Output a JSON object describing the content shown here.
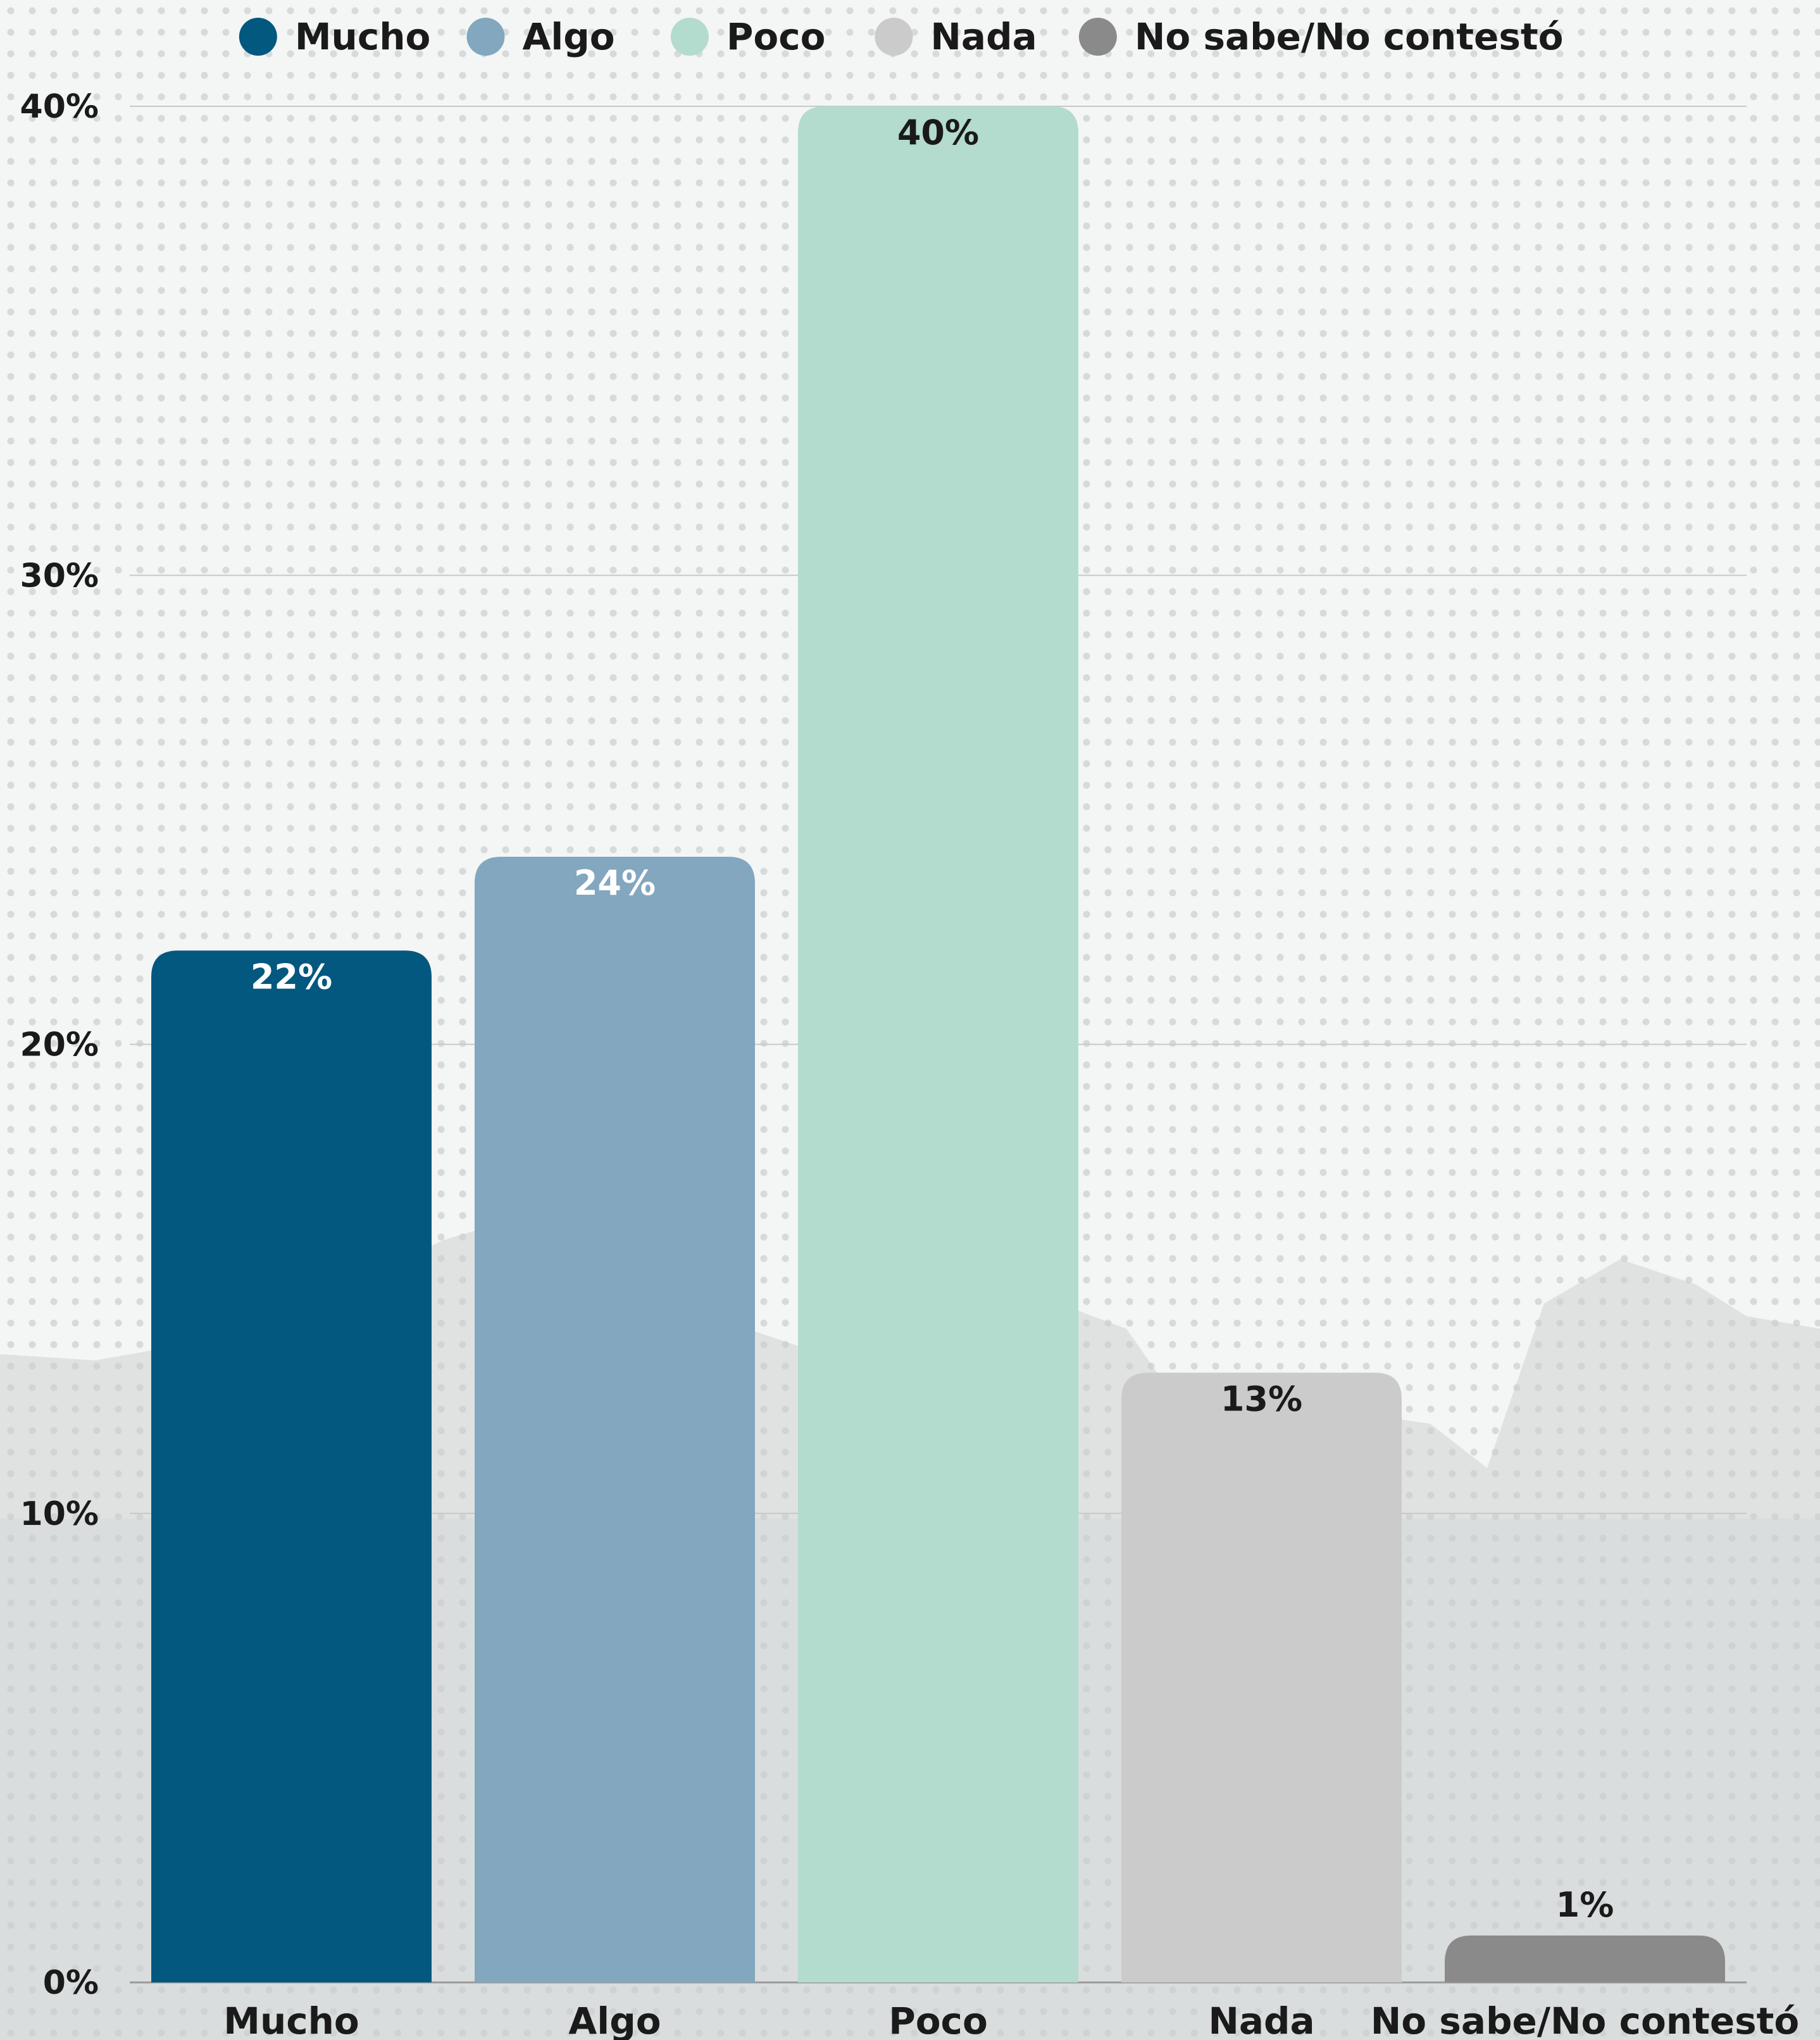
{
  "chart_data": {
    "type": "bar",
    "categories": [
      "Mucho",
      "Algo",
      "Poco",
      "Nada",
      "No sabe/No contestó"
    ],
    "values": [
      22,
      24,
      40,
      13,
      1
    ],
    "data_labels": [
      "22%",
      "24%",
      "40%",
      "13%",
      "1%"
    ],
    "colors": [
      "#03587f",
      "#82a7bf",
      "#b3dbce",
      "#cbcbcb",
      "#8a8a8a"
    ],
    "data_label_colors": [
      "#ffffff",
      "#ffffff",
      "#1a1a1a",
      "#1a1a1a",
      "#1a1a1a"
    ],
    "ylim": [
      0,
      40
    ],
    "y_ticks": [
      0,
      10,
      20,
      30,
      40
    ],
    "y_tick_labels": [
      "0%",
      "10%",
      "20%",
      "30%",
      "40%"
    ],
    "grid": true,
    "legend": {
      "placement": "top-center",
      "entries": [
        "Mucho",
        "Algo",
        "Poco",
        "Nada",
        "No sabe/No contestó"
      ]
    },
    "title": "",
    "xlabel": "",
    "ylabel": ""
  }
}
